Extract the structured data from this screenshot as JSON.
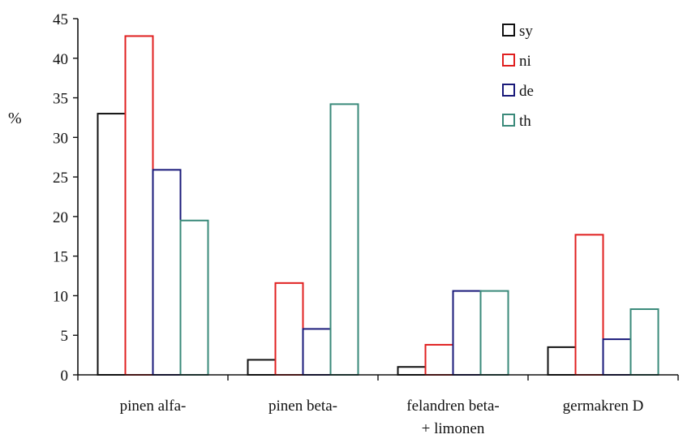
{
  "chart_data": {
    "type": "bar",
    "title": "",
    "xlabel": "",
    "ylabel": "%",
    "ylim": [
      0,
      45
    ],
    "yticks": [
      "0",
      "5",
      "10",
      "15",
      "20",
      "25",
      "30",
      "35",
      "40",
      "45"
    ],
    "grid": false,
    "legend_position": "top-right",
    "categories": [
      [
        "pinen alfa-"
      ],
      [
        "pinen beta-"
      ],
      [
        "felandren beta-",
        "+ limonen"
      ],
      [
        "germakren D"
      ]
    ],
    "series": [
      {
        "name": "sy",
        "color": "#111111",
        "values": [
          33.0,
          1.9,
          1.0,
          3.5
        ]
      },
      {
        "name": "ni",
        "color": "#e02020",
        "values": [
          42.8,
          11.6,
          3.8,
          17.7
        ]
      },
      {
        "name": "de",
        "color": "#1a1a7a",
        "values": [
          25.9,
          5.8,
          10.6,
          4.5
        ]
      },
      {
        "name": "th",
        "color": "#3a8a7a",
        "values": [
          19.5,
          34.2,
          10.6,
          8.3
        ]
      }
    ]
  }
}
